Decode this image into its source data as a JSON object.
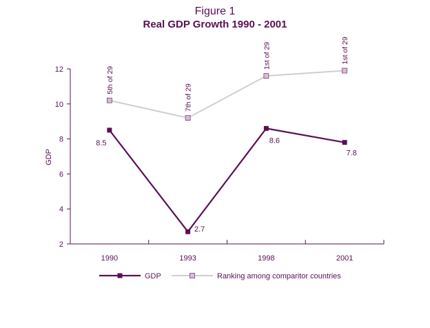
{
  "chart_data": {
    "type": "line",
    "title": "Figure 1",
    "subtitle": "Real GDP Growth 1990 - 2001",
    "ylabel": "GDP",
    "xlabel": "",
    "ylim": [
      2,
      12
    ],
    "yticks": [
      2,
      4,
      6,
      8,
      10,
      12
    ],
    "categories": [
      "1990",
      "1993",
      "1998",
      "2001"
    ],
    "series": [
      {
        "name": "GDP",
        "color": "#5a0f55",
        "marker": "filled-square",
        "values": [
          8.5,
          2.7,
          8.6,
          7.8
        ],
        "labels": [
          "8.5",
          "2.7",
          "8.6",
          "7.8"
        ]
      },
      {
        "name": "Ranking among comparitor countries",
        "color": "#cfcfcf",
        "marker": "open-square",
        "marker_fill": "#d9bcd6",
        "values": [
          10.2,
          9.2,
          11.6,
          11.9
        ],
        "labels": [
          "5th of 29",
          "7th of 29",
          "1st of 29",
          "1st of 29"
        ]
      }
    ],
    "legend": "bottom-center",
    "grid": false
  },
  "colors": {
    "text": "#5a0f55",
    "axis": "#5a0f55"
  }
}
